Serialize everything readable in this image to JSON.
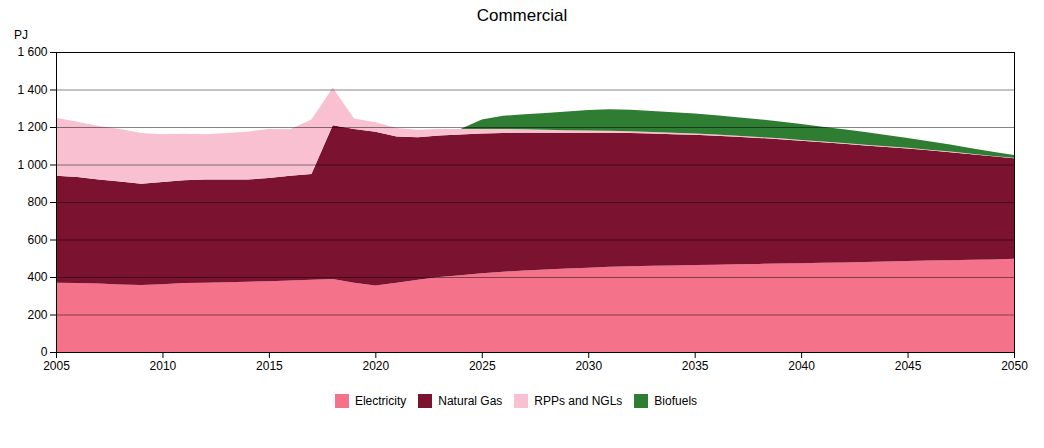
{
  "chart_data": {
    "type": "area",
    "stacked": true,
    "title": "Commercial",
    "ylabel": "PJ",
    "x": [
      2005,
      2006,
      2007,
      2008,
      2009,
      2010,
      2011,
      2012,
      2013,
      2014,
      2015,
      2016,
      2017,
      2018,
      2019,
      2020,
      2021,
      2022,
      2023,
      2024,
      2025,
      2026,
      2027,
      2028,
      2029,
      2030,
      2031,
      2032,
      2033,
      2034,
      2035,
      2036,
      2037,
      2038,
      2039,
      2040,
      2041,
      2042,
      2043,
      2044,
      2045,
      2046,
      2047,
      2048,
      2049,
      2050
    ],
    "series": [
      {
        "name": "Electricity",
        "color": "#F4728A",
        "values": [
          370,
          368,
          365,
          360,
          358,
          362,
          368,
          370,
          372,
          375,
          378,
          382,
          385,
          390,
          370,
          355,
          370,
          385,
          400,
          410,
          420,
          428,
          435,
          440,
          445,
          450,
          455,
          458,
          460,
          462,
          464,
          466,
          468,
          470,
          472,
          474,
          476,
          478,
          480,
          483,
          486,
          488,
          490,
          492,
          494,
          497
        ]
      },
      {
        "name": "Natural Gas",
        "color": "#7B1230",
        "values": [
          570,
          565,
          555,
          550,
          540,
          545,
          548,
          550,
          548,
          545,
          550,
          558,
          565,
          820,
          820,
          820,
          780,
          760,
          755,
          750,
          745,
          740,
          735,
          730,
          725,
          720,
          715,
          710,
          705,
          700,
          695,
          688,
          680,
          672,
          663,
          653,
          643,
          633,
          622,
          611,
          600,
          588,
          576,
          563,
          550,
          537
        ]
      },
      {
        "name": "RPPs and NGLs",
        "color": "#F8C0D0",
        "values": [
          310,
          295,
          285,
          280,
          270,
          255,
          248,
          242,
          248,
          255,
          262,
          248,
          290,
          200,
          55,
          50,
          45,
          40,
          35,
          30,
          25,
          22,
          18,
          15,
          13,
          11,
          10,
          9,
          8,
          7,
          6,
          6,
          5,
          5,
          5,
          4,
          4,
          4,
          4,
          3,
          3,
          3,
          3,
          2,
          2,
          2
        ]
      },
      {
        "name": "Biofuels",
        "color": "#2E7D32",
        "values": [
          0,
          0,
          0,
          0,
          0,
          0,
          0,
          0,
          0,
          0,
          0,
          0,
          0,
          0,
          0,
          0,
          0,
          0,
          0,
          0,
          50,
          70,
          80,
          90,
          100,
          110,
          115,
          115,
          113,
          110,
          107,
          103,
          99,
          95,
          90,
          85,
          79,
          73,
          67,
          60,
          53,
          45,
          38,
          30,
          22,
          15
        ]
      }
    ],
    "xlim": [
      2005,
      2050
    ],
    "xticks": [
      2005,
      2010,
      2015,
      2020,
      2025,
      2030,
      2035,
      2040,
      2045,
      2050
    ],
    "ylim": [
      0,
      1600
    ],
    "yticks": [
      0,
      200,
      400,
      600,
      800,
      {
        "value": 1000,
        "label": "1 000"
      },
      {
        "value": 1200,
        "label": "1 200"
      },
      {
        "value": 1400,
        "label": "1 400"
      },
      {
        "value": 1600,
        "label": "1 600"
      }
    ],
    "grid": "y",
    "legend": "bottom"
  }
}
